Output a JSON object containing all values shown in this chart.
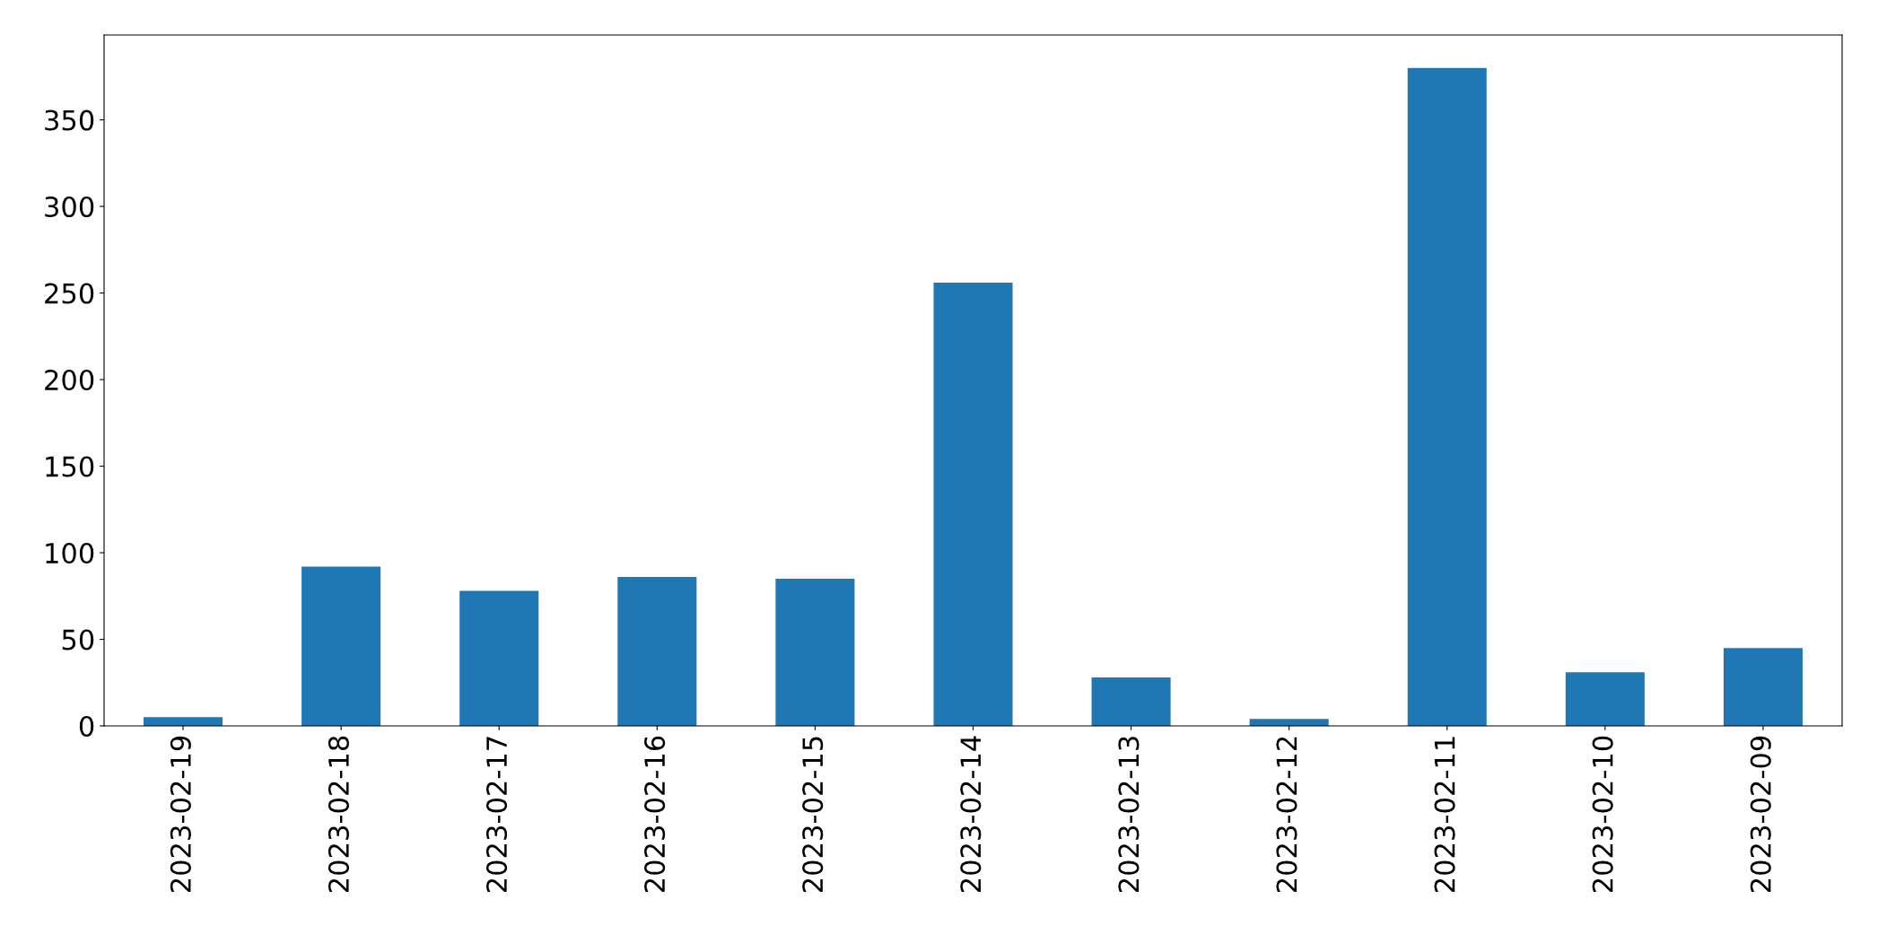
{
  "chart_data": {
    "type": "bar",
    "categories": [
      "2023-02-19",
      "2023-02-18",
      "2023-02-17",
      "2023-02-16",
      "2023-02-15",
      "2023-02-14",
      "2023-02-13",
      "2023-02-12",
      "2023-02-11",
      "2023-02-10",
      "2023-02-09"
    ],
    "values": [
      5,
      92,
      78,
      86,
      85,
      256,
      28,
      4,
      380,
      31,
      45
    ],
    "color": "#1f77b4",
    "ylim": [
      0,
      399
    ],
    "yticks": [
      0,
      50,
      100,
      150,
      200,
      250,
      300,
      350
    ],
    "grid": false,
    "legend": false
  }
}
